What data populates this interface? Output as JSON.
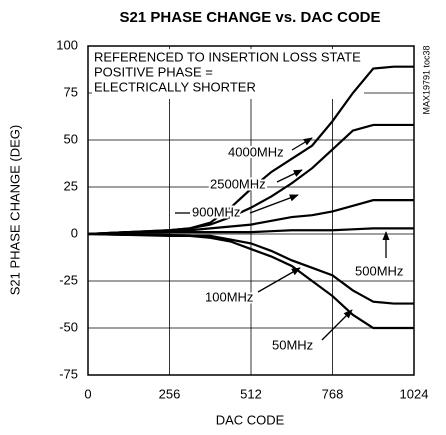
{
  "chart_data": {
    "type": "line",
    "title": "S21 PHASE CHANGE vs. DAC CODE",
    "x_label": "DAC CODE",
    "y_label": "S21 PHASE CHANGE (DEG)",
    "annotations": [
      "REFERENCED TO INSERTION LOSS STATE",
      "POSITIVE PHASE =",
      "ELECTRICALLY SHORTER"
    ],
    "side_note": "MAX19791 toc38",
    "x": [
      0,
      128,
      256,
      320,
      384,
      448,
      512,
      576,
      640,
      704,
      768,
      832,
      896,
      960,
      1024
    ],
    "series": [
      {
        "name": "4000MHz",
        "color": "#000000",
        "values": [
          0,
          1,
          2,
          3,
          6,
          14,
          24,
          33,
          40,
          47,
          60,
          75,
          88,
          89,
          89
        ]
      },
      {
        "name": "2500MHz",
        "color": "#000000",
        "values": [
          0,
          1,
          2,
          3,
          5,
          9,
          14,
          20,
          27,
          35,
          45,
          55,
          58,
          58,
          58
        ]
      },
      {
        "name": "900MHz",
        "color": "#000000",
        "values": [
          0,
          1,
          1,
          2,
          3,
          4,
          5,
          7,
          9,
          10,
          12,
          15,
          18,
          18,
          18
        ]
      },
      {
        "name": "500MHz",
        "color": "#000000",
        "values": [
          0,
          0.5,
          1,
          1,
          1,
          1,
          1,
          1.5,
          2,
          2,
          2,
          2.5,
          3,
          3,
          3
        ]
      },
      {
        "name": "100MHz",
        "color": "#000000",
        "values": [
          0,
          -0.5,
          -0.5,
          -1,
          -1,
          -3,
          -5,
          -9,
          -14,
          -18,
          -22,
          -30,
          -36,
          -37,
          -37
        ]
      },
      {
        "name": "50MHz",
        "color": "#000000",
        "values": [
          0,
          -0.5,
          -1,
          -1,
          -2,
          -4,
          -8,
          -12,
          -17,
          -25,
          -33,
          -43,
          -50,
          -50,
          -50
        ]
      }
    ],
    "xlim": [
      0,
      1024
    ],
    "xticks": [
      0,
      256,
      512,
      768,
      1024
    ],
    "ylim": [
      -75,
      100
    ],
    "yticks": [
      -75,
      -50,
      -25,
      0,
      25,
      50,
      75,
      100
    ],
    "grid": true
  }
}
